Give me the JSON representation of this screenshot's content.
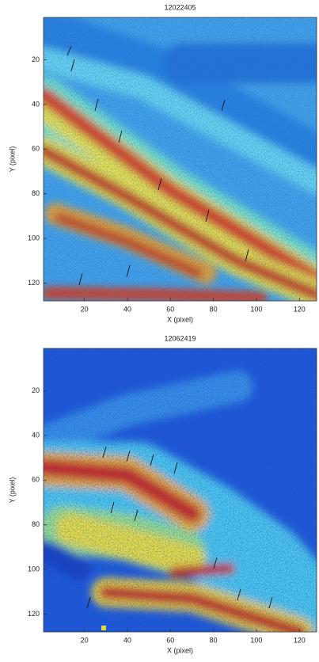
{
  "chart_data": [
    {
      "type": "heatmap",
      "title": "12022405",
      "x_label": "X (pixel)",
      "y_label": "Y (pixel)",
      "xlim": [
        1,
        128
      ],
      "ylim": [
        1,
        128
      ],
      "y_inverted": true,
      "xticks": [
        20,
        40,
        60,
        80,
        100,
        120
      ],
      "yticks": [
        20,
        40,
        60,
        80,
        100,
        120
      ]
    },
    {
      "type": "heatmap",
      "title": "12062419",
      "x_label": "X (pixel)",
      "y_label": "Y (pixel)",
      "xlim": [
        1,
        128
      ],
      "ylim": [
        1,
        128
      ],
      "y_inverted": true,
      "xticks": [
        20,
        40,
        60,
        80,
        100,
        120
      ],
      "yticks": [
        20,
        40,
        60,
        80,
        100,
        120
      ]
    }
  ]
}
